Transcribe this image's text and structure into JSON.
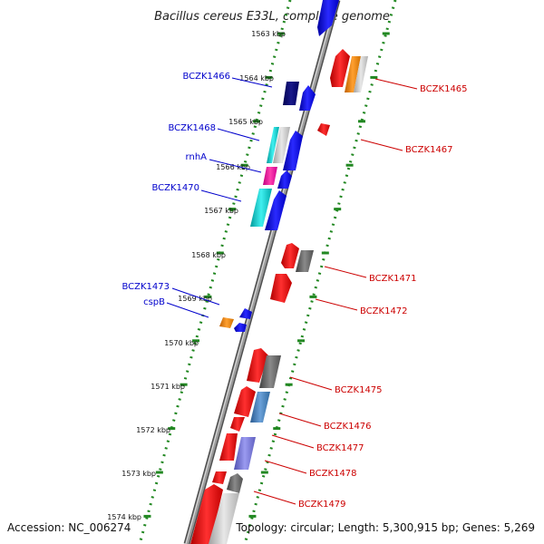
{
  "title": "Bacillus cereus E33L, complete genome",
  "footer": {
    "accession": "Accession: NC_006274",
    "summary": "Topology: circular; Length: 5,300,915 bp; Genes: 5,269"
  },
  "ticks": [
    "1563 kbp",
    "1564 kbp",
    "1565 kbp",
    "1566 kbp",
    "1567 kbp",
    "1568 kbp",
    "1569 kbp",
    "1570 kbp",
    "1571 kbp",
    "1572 kbp",
    "1573 kbp",
    "1574 kbp"
  ],
  "labels_left": [
    "BCZK1466",
    "BCZK1468",
    "rnhA",
    "BCZK1470",
    "BCZK1473",
    "cspB"
  ],
  "labels_right": [
    "BCZK1465",
    "BCZK1467",
    "BCZK1471",
    "BCZK1472",
    "BCZK1475",
    "BCZK1476",
    "BCZK1477",
    "BCZK1478",
    "BCZK1479"
  ],
  "colors": {
    "backbone": "#808080",
    "dotted_track": "#228822",
    "label_left": "#0000cc",
    "label_right": "#cc0000",
    "forward_gene": "#0000ee",
    "reverse_gene": "#ee0000"
  }
}
